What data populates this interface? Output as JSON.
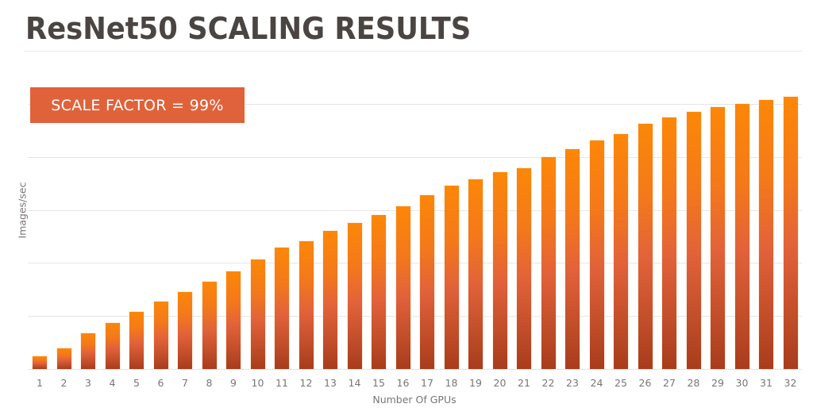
{
  "slide": {
    "title": "ResNet50 SCALING RESULTS",
    "callout": "SCALE FACTOR = 99%"
  },
  "colors": {
    "title": "#4a4542",
    "callout_bg": "#e0623a",
    "bar_top": "#fc8708",
    "bar_bottom": "#a83c1c",
    "gridline": "#e6e6e6",
    "axis_text": "#7a7574"
  },
  "chart_data": {
    "type": "bar",
    "title": "ResNet50 SCALING RESULTS",
    "xlabel": "Number Of GPUs",
    "ylabel": "Images/sec",
    "categories": [
      "1",
      "2",
      "3",
      "4",
      "5",
      "6",
      "7",
      "8",
      "9",
      "10",
      "11",
      "12",
      "13",
      "14",
      "15",
      "16",
      "17",
      "18",
      "19",
      "20",
      "21",
      "22",
      "23",
      "24",
      "25",
      "26",
      "27",
      "28",
      "29",
      "30",
      "31",
      "32"
    ],
    "values": [
      24,
      39,
      67,
      87,
      108,
      127,
      145,
      165,
      184,
      207,
      229,
      241,
      260,
      275,
      290,
      307,
      328,
      346,
      358,
      371,
      379,
      400,
      415,
      431,
      443,
      463,
      475,
      485,
      494,
      500,
      507,
      513
    ],
    "value_units_note": "relative units; y-axis has no tick labels, each gridline = 100",
    "ylim": [
      0,
      500
    ],
    "gridlines": [
      0,
      100,
      200,
      300,
      400,
      500
    ],
    "grid": true,
    "legend": null,
    "annotations": [
      "SCALE FACTOR = 99%"
    ]
  }
}
